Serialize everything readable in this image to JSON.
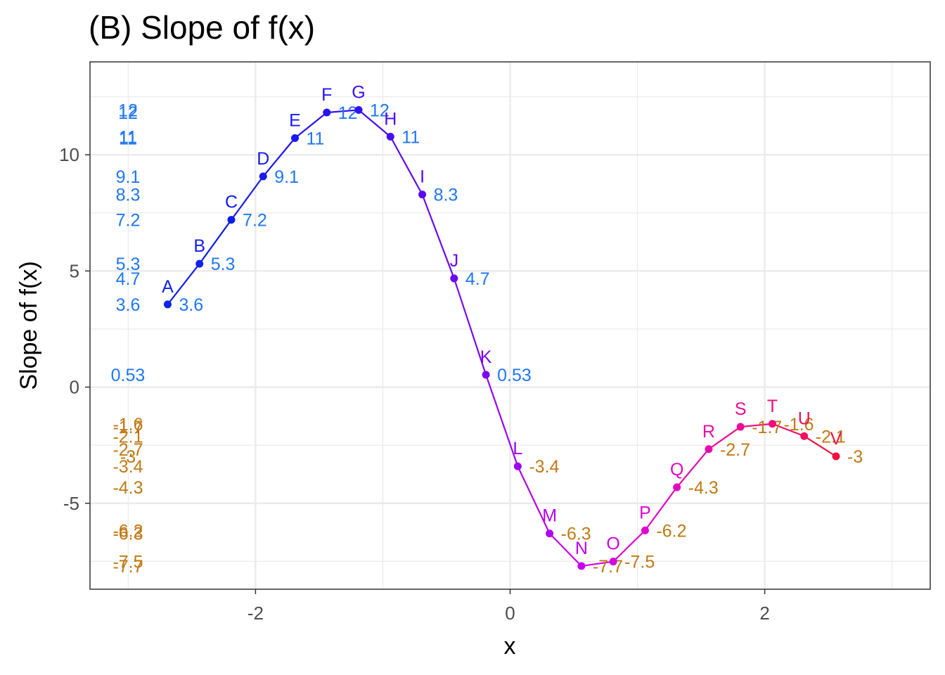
{
  "chart_data": {
    "type": "line",
    "title": "(B) Slope of f(x)",
    "xlabel": "x",
    "ylabel": "Slope of f(x)",
    "xlim": [
      -3.3,
      3.3
    ],
    "ylim": [
      -8.7,
      14.0
    ],
    "x_ticks": [
      -2,
      0,
      2
    ],
    "x_tick_labels": [
      "-2",
      "0",
      "2"
    ],
    "y_ticks": [
      -5,
      0,
      5,
      10
    ],
    "y_tick_labels": [
      "-5",
      "0",
      "5",
      "10"
    ],
    "grid": true,
    "legend": "none",
    "points": [
      {
        "label": "A",
        "x": -2.69,
        "y": 3.56,
        "value_label": "3.6",
        "color": "#0b24e6",
        "value_color": "#1f77f4"
      },
      {
        "label": "B",
        "x": -2.44,
        "y": 5.31,
        "value_label": "5.3",
        "color": "#1320ea",
        "value_color": "#1f77f4"
      },
      {
        "label": "C",
        "x": -2.19,
        "y": 7.2,
        "value_label": "7.2",
        "color": "#0a1ded",
        "value_color": "#1f77f4"
      },
      {
        "label": "D",
        "x": -1.94,
        "y": 9.07,
        "value_label": "9.1",
        "color": "#1a1bee",
        "value_color": "#1f77f4"
      },
      {
        "label": "E",
        "x": -1.69,
        "y": 10.72,
        "value_label": "11",
        "color": "#1b16f0",
        "value_color": "#1f77f4"
      },
      {
        "label": "F",
        "x": -1.44,
        "y": 11.82,
        "value_label": "12",
        "color": "#2713f0",
        "value_color": "#1f77f4"
      },
      {
        "label": "G",
        "x": -1.19,
        "y": 11.93,
        "value_label": "12",
        "color": "#3312f0",
        "value_color": "#1f77f4"
      },
      {
        "label": "H",
        "x": -0.94,
        "y": 10.78,
        "value_label": "11",
        "color": "#4a0ff0",
        "value_color": "#1f77f4"
      },
      {
        "label": "I",
        "x": -0.69,
        "y": 8.29,
        "value_label": "8.3",
        "color": "#5a0cf0",
        "value_color": "#1f77f4"
      },
      {
        "label": "J",
        "x": -0.44,
        "y": 4.68,
        "value_label": "4.7",
        "color": "#6a0af0",
        "value_color": "#1f77f4"
      },
      {
        "label": "K",
        "x": -0.19,
        "y": 0.53,
        "value_label": "0.53",
        "color": "#7a08f0",
        "value_color": "#1f77f4"
      },
      {
        "label": "L",
        "x": 0.06,
        "y": -3.41,
        "value_label": "-3.4",
        "color": "#9a06f0",
        "value_color": "#c07a14"
      },
      {
        "label": "M",
        "x": 0.31,
        "y": -6.3,
        "value_label": "-6.3",
        "color": "#b404ee",
        "value_color": "#c07a14"
      },
      {
        "label": "N",
        "x": 0.56,
        "y": -7.7,
        "value_label": "-7.7",
        "color": "#c402ec",
        "value_color": "#c07a14"
      },
      {
        "label": "O",
        "x": 0.81,
        "y": -7.51,
        "value_label": "-7.5",
        "color": "#d204e0",
        "value_color": "#c07a14"
      },
      {
        "label": "P",
        "x": 1.06,
        "y": -6.17,
        "value_label": "-6.2",
        "color": "#de06d2",
        "value_color": "#c07a14"
      },
      {
        "label": "Q",
        "x": 1.31,
        "y": -4.31,
        "value_label": "-4.3",
        "color": "#e408c4",
        "value_color": "#c07a14"
      },
      {
        "label": "R",
        "x": 1.56,
        "y": -2.67,
        "value_label": "-2.7",
        "color": "#e80aac",
        "value_color": "#c07a14"
      },
      {
        "label": "S",
        "x": 1.81,
        "y": -1.71,
        "value_label": "-1.7",
        "color": "#ec0c94",
        "value_color": "#c07a14"
      },
      {
        "label": "T",
        "x": 2.06,
        "y": -1.58,
        "value_label": "-1.6",
        "color": "#ee0e7c",
        "value_color": "#c07a14"
      },
      {
        "label": "U",
        "x": 2.31,
        "y": -2.11,
        "value_label": "-2.1",
        "color": "#f01064",
        "value_color": "#c07a14"
      },
      {
        "label": "V",
        "x": 2.56,
        "y": -2.98,
        "value_label": "-3",
        "color": "#f2123c",
        "value_color": "#c07a14"
      }
    ]
  }
}
